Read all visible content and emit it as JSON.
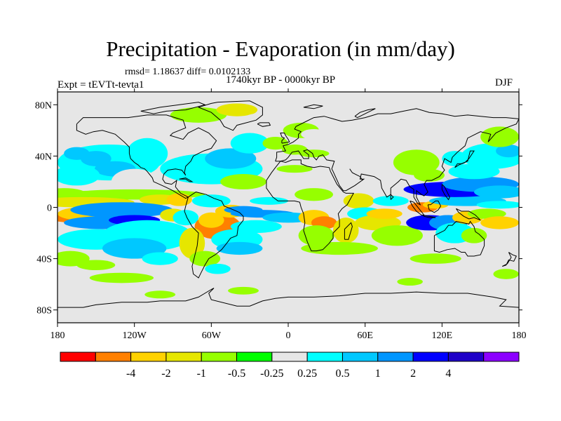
{
  "title": "Precipitation - Evaporation (in mm/day)",
  "stats": "rmsd= 1.18637 diff= 0.0102133",
  "period": "1740kyr BP - 0000kyr BP",
  "experiment": "Expt = tEVTt-tevta1",
  "season": "DJF",
  "map": {
    "lon_range": [
      -180,
      180
    ],
    "lat_range": [
      -90,
      90
    ],
    "ocean_color": "#e6e6e6",
    "coastline_color": "#000000",
    "lat_ticks": [
      {
        "value": 80,
        "label": "80N"
      },
      {
        "value": 40,
        "label": "40N"
      },
      {
        "value": 0,
        "label": "0"
      },
      {
        "value": -40,
        "label": "40S"
      },
      {
        "value": -80,
        "label": "80S"
      }
    ],
    "lon_ticks": [
      {
        "value": -180,
        "label": "180"
      },
      {
        "value": -120,
        "label": "120W"
      },
      {
        "value": -60,
        "label": "60W"
      },
      {
        "value": 0,
        "label": "0"
      },
      {
        "value": 60,
        "label": "60E"
      },
      {
        "value": 120,
        "label": "120E"
      },
      {
        "value": 180,
        "label": "180"
      }
    ]
  },
  "colorbar": {
    "colors": [
      "#ff0000",
      "#ff8000",
      "#ffd200",
      "#e6e600",
      "#96ff00",
      "#00ff00",
      "#e6e6e6",
      "#00ffff",
      "#00c8ff",
      "#0096ff",
      "#0000ff",
      "#1e00c8",
      "#8c00ff"
    ],
    "labels": [
      "-4",
      "-2",
      "-1",
      "-0.5",
      "-0.25",
      "0.25",
      "0.5",
      "1",
      "2",
      "4"
    ]
  },
  "chart_data": {
    "type": "heatmap",
    "xlabel": "",
    "ylabel": "",
    "xlim": [
      -180,
      180
    ],
    "ylim": [
      -90,
      90
    ],
    "grid": false,
    "color_levels": [
      -4,
      -2,
      -1,
      -0.5,
      -0.25,
      0.25,
      0.5,
      1,
      2,
      4
    ],
    "blobs": [
      {
        "lon": -150,
        "lat": 50,
        "w": 20,
        "h": 8,
        "v": 0.4
      },
      {
        "lon": -140,
        "lat": 35,
        "w": 40,
        "h": 14,
        "v": 0.9
      },
      {
        "lon": -135,
        "lat": 30,
        "w": 16,
        "h": 6,
        "v": 1.5
      },
      {
        "lon": -150,
        "lat": 38,
        "w": 12,
        "h": 6,
        "v": 1.2
      },
      {
        "lon": -165,
        "lat": 25,
        "w": 18,
        "h": 8,
        "v": 0.8
      },
      {
        "lon": -165,
        "lat": 42,
        "w": 10,
        "h": 5,
        "v": 1.5
      },
      {
        "lon": -110,
        "lat": 42,
        "w": 16,
        "h": 12,
        "v": 0.6
      },
      {
        "lon": -120,
        "lat": 20,
        "w": 18,
        "h": 10,
        "v": 0.4
      },
      {
        "lon": -175,
        "lat": 10,
        "w": 18,
        "h": 5,
        "v": -0.35
      },
      {
        "lon": -120,
        "lat": 10,
        "w": 55,
        "h": 4,
        "v": -0.3
      },
      {
        "lon": -160,
        "lat": 4,
        "w": 40,
        "h": 4,
        "v": -0.6
      },
      {
        "lon": -100,
        "lat": 6,
        "w": 16,
        "h": 4,
        "v": -0.8
      },
      {
        "lon": -85,
        "lat": 6,
        "w": 10,
        "h": 5,
        "v": -1.2
      },
      {
        "lon": -60,
        "lat": 30,
        "w": 40,
        "h": 12,
        "v": 0.8
      },
      {
        "lon": -45,
        "lat": 38,
        "w": 20,
        "h": 8,
        "v": 1.2
      },
      {
        "lon": -35,
        "lat": 20,
        "w": 18,
        "h": 6,
        "v": -0.35
      },
      {
        "lon": -30,
        "lat": 50,
        "w": 15,
        "h": 8,
        "v": 0.5
      },
      {
        "lon": -10,
        "lat": 50,
        "w": 10,
        "h": 5,
        "v": -0.35
      },
      {
        "lon": -70,
        "lat": 72,
        "w": 22,
        "h": 6,
        "v": -0.35
      },
      {
        "lon": -40,
        "lat": 76,
        "w": 16,
        "h": 5,
        "v": -0.6
      },
      {
        "lon": -25,
        "lat": 68,
        "w": 10,
        "h": 5,
        "v": 0.4
      },
      {
        "lon": 10,
        "lat": 60,
        "w": 14,
        "h": 6,
        "v": -0.35
      },
      {
        "lon": 20,
        "lat": 57,
        "w": 10,
        "h": 4,
        "v": 0.4
      },
      {
        "lon": 5,
        "lat": 45,
        "w": 10,
        "h": 4,
        "v": -0.4
      },
      {
        "lon": 20,
        "lat": 42,
        "w": 12,
        "h": 3,
        "v": -0.3
      },
      {
        "lon": 5,
        "lat": 30,
        "w": 14,
        "h": 3,
        "v": -0.3
      },
      {
        "lon": -165,
        "lat": -8,
        "w": 22,
        "h": 4,
        "v": -2.5
      },
      {
        "lon": -150,
        "lat": -5,
        "w": 30,
        "h": 6,
        "v": -1.2
      },
      {
        "lon": -130,
        "lat": -2,
        "w": 40,
        "h": 6,
        "v": 2.2
      },
      {
        "lon": -145,
        "lat": -12,
        "w": 30,
        "h": 5,
        "v": 3
      },
      {
        "lon": -120,
        "lat": -10,
        "w": 20,
        "h": 4,
        "v": 4.5
      },
      {
        "lon": -110,
        "lat": -22,
        "w": 35,
        "h": 12,
        "v": 0.8
      },
      {
        "lon": -150,
        "lat": -25,
        "w": 30,
        "h": 8,
        "v": 0.5
      },
      {
        "lon": -120,
        "lat": -32,
        "w": 25,
        "h": 8,
        "v": 1.5
      },
      {
        "lon": -100,
        "lat": -40,
        "w": 14,
        "h": 5,
        "v": 0.6
      },
      {
        "lon": -170,
        "lat": -40,
        "w": 15,
        "h": 6,
        "v": -0.35
      },
      {
        "lon": -130,
        "lat": -55,
        "w": 25,
        "h": 4,
        "v": -0.3
      },
      {
        "lon": -150,
        "lat": -45,
        "w": 15,
        "h": 4,
        "v": -0.3
      },
      {
        "lon": -90,
        "lat": -6,
        "w": 10,
        "h": 5,
        "v": -0.7
      },
      {
        "lon": -80,
        "lat": -8,
        "w": 10,
        "h": 6,
        "v": 0.5
      },
      {
        "lon": -60,
        "lat": 5,
        "w": 15,
        "h": 5,
        "v": 0.5
      },
      {
        "lon": -55,
        "lat": -15,
        "w": 18,
        "h": 10,
        "v": -3
      },
      {
        "lon": -60,
        "lat": -10,
        "w": 10,
        "h": 6,
        "v": -1.5
      },
      {
        "lon": -45,
        "lat": -3,
        "w": 12,
        "h": 5,
        "v": -1.5
      },
      {
        "lon": -75,
        "lat": -28,
        "w": 10,
        "h": 12,
        "v": -0.6
      },
      {
        "lon": -65,
        "lat": -40,
        "w": 12,
        "h": 6,
        "v": -0.35
      },
      {
        "lon": -40,
        "lat": -25,
        "w": 20,
        "h": 8,
        "v": 0.6
      },
      {
        "lon": -38,
        "lat": -32,
        "w": 18,
        "h": 5,
        "v": 1.2
      },
      {
        "lon": -25,
        "lat": -15,
        "w": 20,
        "h": 5,
        "v": 0.5
      },
      {
        "lon": -55,
        "lat": -48,
        "w": 10,
        "h": 4,
        "v": 0.6
      },
      {
        "lon": -20,
        "lat": -5,
        "w": 25,
        "h": 3,
        "v": 3
      },
      {
        "lon": -35,
        "lat": -2,
        "w": 15,
        "h": 3,
        "v": 2
      },
      {
        "lon": 0,
        "lat": -8,
        "w": 20,
        "h": 4,
        "v": 1.5
      },
      {
        "lon": -15,
        "lat": 5,
        "w": 15,
        "h": 3,
        "v": 0.5
      },
      {
        "lon": 20,
        "lat": 10,
        "w": 15,
        "h": 5,
        "v": -0.35
      },
      {
        "lon": 20,
        "lat": -8,
        "w": 12,
        "h": 6,
        "v": -1.2
      },
      {
        "lon": 28,
        "lat": -12,
        "w": 10,
        "h": 5,
        "v": -2.5
      },
      {
        "lon": 22,
        "lat": -22,
        "w": 14,
        "h": 8,
        "v": -0.35
      },
      {
        "lon": 45,
        "lat": -18,
        "w": 10,
        "h": 10,
        "v": -1
      },
      {
        "lon": 55,
        "lat": 5,
        "w": 12,
        "h": 6,
        "v": -0.6
      },
      {
        "lon": 60,
        "lat": -5,
        "w": 14,
        "h": 5,
        "v": 0.5
      },
      {
        "lon": 40,
        "lat": -32,
        "w": 30,
        "h": 5,
        "v": -0.35
      },
      {
        "lon": 70,
        "lat": -12,
        "w": 18,
        "h": 6,
        "v": -0.6
      },
      {
        "lon": 75,
        "lat": -5,
        "w": 14,
        "h": 4,
        "v": -1.5
      },
      {
        "lon": 80,
        "lat": 5,
        "w": 14,
        "h": 4,
        "v": 0.5
      },
      {
        "lon": 85,
        "lat": -22,
        "w": 20,
        "h": 8,
        "v": -0.35
      },
      {
        "lon": 110,
        "lat": -12,
        "w": 18,
        "h": 6,
        "v": 4.5
      },
      {
        "lon": 125,
        "lat": -12,
        "w": 15,
        "h": 6,
        "v": 2.2
      },
      {
        "lon": 130,
        "lat": -20,
        "w": 15,
        "h": 8,
        "v": 0.6
      },
      {
        "lon": 140,
        "lat": -8,
        "w": 12,
        "h": 5,
        "v": -1.5
      },
      {
        "lon": 155,
        "lat": -5,
        "w": 15,
        "h": 4,
        "v": -0.35
      },
      {
        "lon": 165,
        "lat": -12,
        "w": 15,
        "h": 5,
        "v": -1.2
      },
      {
        "lon": 145,
        "lat": -22,
        "w": 10,
        "h": 6,
        "v": -0.35
      },
      {
        "lon": 105,
        "lat": 0,
        "w": 12,
        "h": 4,
        "v": -2.5
      },
      {
        "lon": 115,
        "lat": 2,
        "w": 10,
        "h": 3,
        "v": -1.2
      },
      {
        "lon": 140,
        "lat": 5,
        "w": 30,
        "h": 4,
        "v": 1.5
      },
      {
        "lon": 165,
        "lat": 2,
        "w": 18,
        "h": 3,
        "v": 0.7
      },
      {
        "lon": 130,
        "lat": 14,
        "w": 40,
        "h": 6,
        "v": 4.5
      },
      {
        "lon": 150,
        "lat": 18,
        "w": 30,
        "h": 6,
        "v": 2.2
      },
      {
        "lon": 165,
        "lat": 12,
        "w": 20,
        "h": 5,
        "v": 1.2
      },
      {
        "lon": 145,
        "lat": 28,
        "w": 20,
        "h": 6,
        "v": 0.8
      },
      {
        "lon": 130,
        "lat": 38,
        "w": 10,
        "h": 6,
        "v": 0.6
      },
      {
        "lon": 160,
        "lat": 40,
        "w": 25,
        "h": 10,
        "v": 0.5
      },
      {
        "lon": 172,
        "lat": 44,
        "w": 10,
        "h": 5,
        "v": 1.2
      },
      {
        "lon": 165,
        "lat": 55,
        "w": 15,
        "h": 8,
        "v": -0.35
      },
      {
        "lon": 100,
        "lat": 35,
        "w": 18,
        "h": 10,
        "v": -0.35
      },
      {
        "lon": 110,
        "lat": 25,
        "w": 12,
        "h": 5,
        "v": -0.35
      },
      {
        "lon": 115,
        "lat": -40,
        "w": 20,
        "h": 4,
        "v": -0.3
      },
      {
        "lon": 160,
        "lat": -40,
        "w": 15,
        "h": 5,
        "v": 0.4
      },
      {
        "lon": 170,
        "lat": -52,
        "w": 10,
        "h": 4,
        "v": -0.3
      },
      {
        "lon": -100,
        "lat": -68,
        "w": 12,
        "h": 3,
        "v": -0.3
      },
      {
        "lon": -35,
        "lat": -65,
        "w": 12,
        "h": 3,
        "v": -0.3
      },
      {
        "lon": 95,
        "lat": -58,
        "w": 10,
        "h": 3,
        "v": -0.3
      }
    ]
  }
}
